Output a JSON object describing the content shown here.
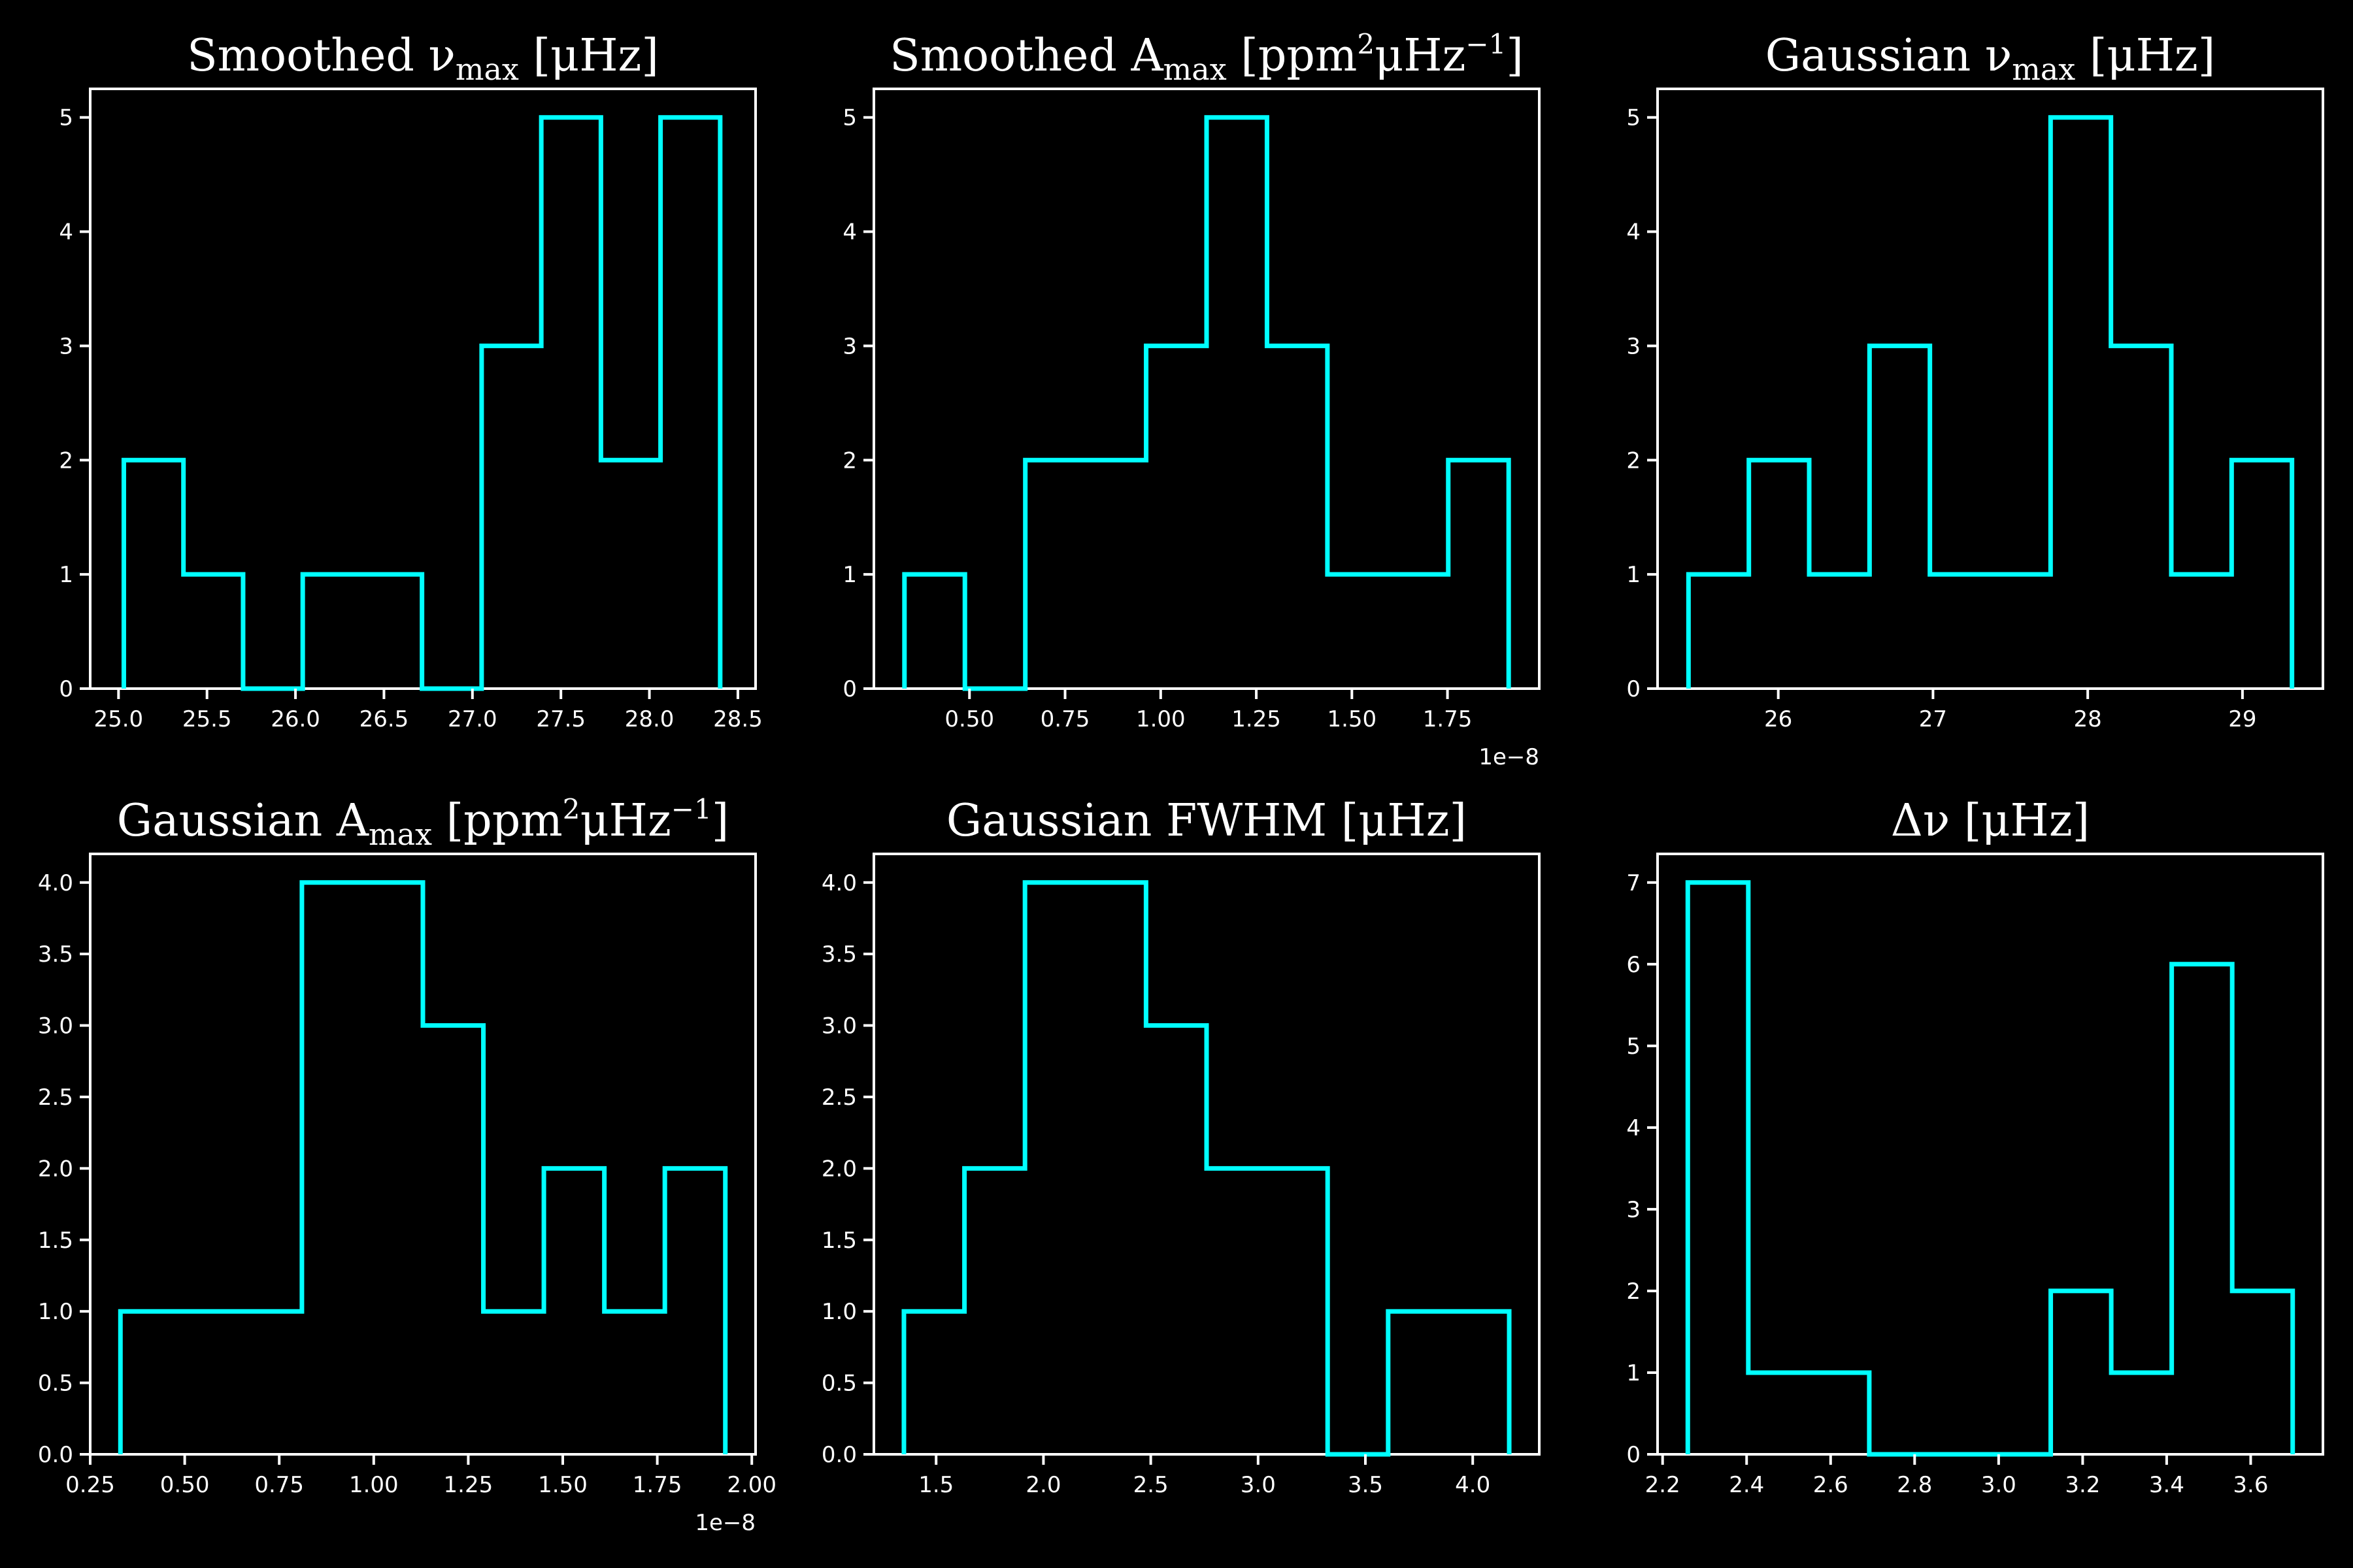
{
  "style": {
    "background": "#000000",
    "foreground": "#ffffff",
    "series_color": "#00ffff"
  },
  "chart_data": [
    {
      "type": "histogram",
      "title": {
        "main": "Smoothed ν",
        "sub": "max",
        "rest": " [μHz]"
      },
      "bin_edges": [
        25.03,
        25.367,
        25.704,
        26.041,
        26.378,
        26.715,
        27.052,
        27.389,
        27.726,
        28.063,
        28.4
      ],
      "counts": [
        2,
        1,
        0,
        1,
        1,
        0,
        3,
        5,
        2,
        5
      ],
      "xlim": [
        24.84,
        28.6
      ],
      "ylim": [
        0,
        5.25
      ],
      "xticks": [
        25.0,
        25.5,
        26.0,
        26.5,
        27.0,
        27.5,
        28.0,
        28.5
      ],
      "xtick_labels": [
        "25.0",
        "25.5",
        "26.0",
        "26.5",
        "27.0",
        "27.5",
        "28.0",
        "28.5"
      ],
      "yticks": [
        0,
        1,
        2,
        3,
        4,
        5
      ],
      "ytick_labels": [
        "0",
        "1",
        "2",
        "3",
        "4",
        "5"
      ],
      "offset_text": ""
    },
    {
      "type": "histogram",
      "title": {
        "main": "Smoothed A",
        "sub": "max",
        "rest": " [ppm",
        "sup": "2",
        "rest2": "μHz",
        "sup2": "−1",
        "rest3": "]"
      },
      "bin_edges": [
        0.33,
        0.488,
        0.646,
        0.804,
        0.962,
        1.12,
        1.278,
        1.436,
        1.594,
        1.752,
        1.91
      ],
      "counts": [
        1,
        0,
        2,
        2,
        3,
        5,
        3,
        1,
        1,
        2
      ],
      "xlim": [
        0.25,
        1.99
      ],
      "ylim": [
        0,
        5.25
      ],
      "xticks": [
        0.5,
        0.75,
        1.0,
        1.25,
        1.5,
        1.75
      ],
      "xtick_labels": [
        "0.50",
        "0.75",
        "1.00",
        "1.25",
        "1.50",
        "1.75"
      ],
      "yticks": [
        0,
        1,
        2,
        3,
        4,
        5
      ],
      "ytick_labels": [
        "0",
        "1",
        "2",
        "3",
        "4",
        "5"
      ],
      "offset_text": "1e−8"
    },
    {
      "type": "histogram",
      "title": {
        "main": "Gaussian ν",
        "sub": "max",
        "rest": " [μHz]"
      },
      "bin_edges": [
        25.42,
        25.81,
        26.2,
        26.59,
        26.98,
        27.37,
        27.76,
        28.15,
        28.54,
        28.93,
        29.32
      ],
      "counts": [
        1,
        2,
        1,
        3,
        1,
        1,
        5,
        3,
        1,
        2
      ],
      "xlim": [
        25.22,
        29.52
      ],
      "ylim": [
        0,
        5.25
      ],
      "xticks": [
        26,
        27,
        28,
        29
      ],
      "xtick_labels": [
        "26",
        "27",
        "28",
        "29"
      ],
      "yticks": [
        0,
        1,
        2,
        3,
        4,
        5
      ],
      "ytick_labels": [
        "0",
        "1",
        "2",
        "3",
        "4",
        "5"
      ],
      "offset_text": ""
    },
    {
      "type": "histogram",
      "title": {
        "main": "Gaussian A",
        "sub": "max",
        "rest": " [ppm",
        "sup": "2",
        "rest2": "μHz",
        "sup2": "−1",
        "rest3": "]"
      },
      "bin_edges": [
        0.33,
        0.49,
        0.65,
        0.81,
        0.97,
        1.13,
        1.29,
        1.45,
        1.61,
        1.77,
        1.93
      ],
      "counts": [
        1,
        1,
        1,
        4,
        4,
        3,
        1,
        2,
        1,
        2
      ],
      "xlim": [
        0.25,
        2.01
      ],
      "ylim": [
        0,
        4.2
      ],
      "xticks": [
        0.25,
        0.5,
        0.75,
        1.0,
        1.25,
        1.5,
        1.75,
        2.0
      ],
      "xtick_labels": [
        "0.25",
        "0.50",
        "0.75",
        "1.00",
        "1.25",
        "1.50",
        "1.75",
        "2.00"
      ],
      "yticks": [
        0,
        0.5,
        1.0,
        1.5,
        2.0,
        2.5,
        3.0,
        3.5,
        4.0
      ],
      "ytick_labels": [
        "0.0",
        "0.5",
        "1.0",
        "1.5",
        "2.0",
        "2.5",
        "3.0",
        "3.5",
        "4.0"
      ],
      "offset_text": "1e−8"
    },
    {
      "type": "histogram",
      "title": {
        "main": "Gaussian FWHM [μHz]"
      },
      "bin_edges": [
        1.35,
        1.632,
        1.914,
        2.196,
        2.478,
        2.76,
        3.042,
        3.324,
        3.606,
        3.888,
        4.17
      ],
      "counts": [
        1,
        2,
        4,
        4,
        3,
        2,
        2,
        0,
        1,
        1
      ],
      "xlim": [
        1.21,
        4.31
      ],
      "ylim": [
        0,
        4.2
      ],
      "xticks": [
        1.5,
        2.0,
        2.5,
        3.0,
        3.5,
        4.0
      ],
      "xtick_labels": [
        "1.5",
        "2.0",
        "2.5",
        "3.0",
        "3.5",
        "4.0"
      ],
      "yticks": [
        0,
        0.5,
        1.0,
        1.5,
        2.0,
        2.5,
        3.0,
        3.5,
        4.0
      ],
      "ytick_labels": [
        "0.0",
        "0.5",
        "1.0",
        "1.5",
        "2.0",
        "2.5",
        "3.0",
        "3.5",
        "4.0"
      ],
      "offset_text": ""
    },
    {
      "type": "histogram",
      "title": {
        "main": "Δν [μHz]"
      },
      "bin_edges": [
        2.26,
        2.404,
        2.548,
        2.692,
        2.836,
        2.98,
        3.124,
        3.268,
        3.412,
        3.556,
        3.7
      ],
      "counts": [
        7,
        1,
        1,
        0,
        0,
        0,
        2,
        1,
        6,
        2
      ],
      "xlim": [
        2.188,
        3.772
      ],
      "ylim": [
        0,
        7.35
      ],
      "xticks": [
        2.2,
        2.4,
        2.6,
        2.8,
        3.0,
        3.2,
        3.4,
        3.6
      ],
      "xtick_labels": [
        "2.2",
        "2.4",
        "2.6",
        "2.8",
        "3.0",
        "3.2",
        "3.4",
        "3.6"
      ],
      "yticks": [
        0,
        1,
        2,
        3,
        4,
        5,
        6,
        7
      ],
      "ytick_labels": [
        "0",
        "1",
        "2",
        "3",
        "4",
        "5",
        "6",
        "7"
      ],
      "offset_text": ""
    }
  ]
}
